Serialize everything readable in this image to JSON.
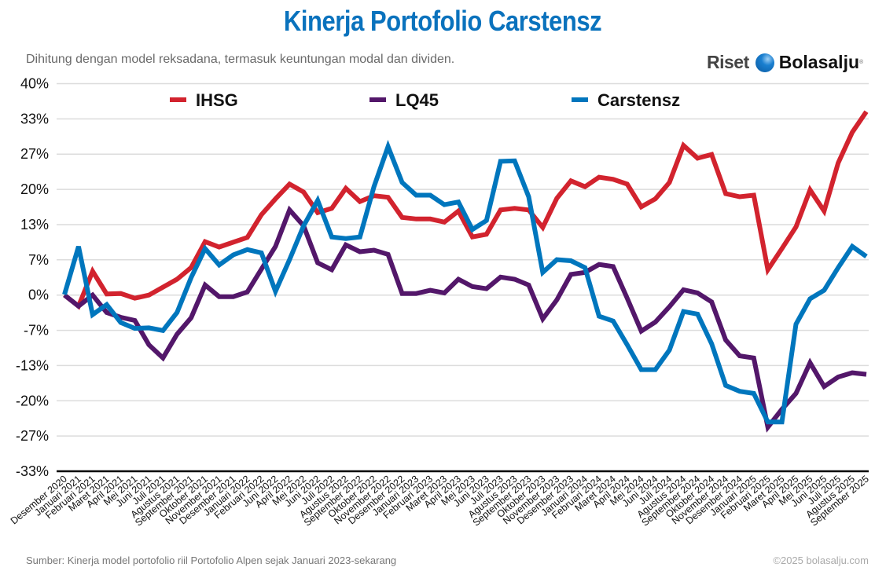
{
  "header": {
    "title": "Kinerja Portofolio Carstensz",
    "subtitle": "Dihitung dengan model reksadana, termasuk keuntungan modal dan dividen.",
    "logo": {
      "left": "Riset",
      "right": "Bolasalju",
      "mark": "®"
    }
  },
  "footer": {
    "source": "Sumber: Kinerja model portofolio riil Portofolio Alpen sejak Januari 2023-sekarang",
    "copyright": "©2025 bolasalju.com"
  },
  "chart_data": {
    "type": "line",
    "title": "Kinerja Portofolio Carstensz",
    "ylim": [
      -33.33,
      40
    ],
    "yticks": [
      40,
      33.33,
      26.67,
      20,
      13.33,
      6.67,
      0,
      -6.67,
      -13.33,
      -20,
      -26.67,
      -33.33
    ],
    "ytick_labels": [
      "40%",
      "33%",
      "27%",
      "20%",
      "13%",
      "7%",
      "0%",
      "-7%",
      "-13%",
      "-20%",
      "-27%",
      "-33%"
    ],
    "grid": true,
    "legend_placement": "top",
    "categories": [
      "Desember 2020",
      "Januari 2021",
      "Februari 2021",
      "Maret 2021",
      "April 2021",
      "Mei 2021",
      "Juni 2021",
      "Juli 2021",
      "Agustus 2021",
      "September 2021",
      "Oktober 2021",
      "November 2021",
      "Desember 2021",
      "Januari 2022",
      "Februari 2022",
      "Juni 2022",
      "April 2022",
      "Mei 2022",
      "Juni 2022",
      "Juli 2022",
      "Agustus 2022",
      "September 2022",
      "Oktober 2022",
      "November 2022",
      "Desember 2022",
      "Januari 2023",
      "Februari 2023",
      "Maret 2023",
      "April 2023",
      "Mei 2023",
      "Juni 2023",
      "Juli 2023",
      "Agustus 2023",
      "September 2023",
      "Oktober 2023",
      "November 2023",
      "Desember 2023",
      "Januari 2024",
      "Februari 2024",
      "Maret 2024",
      "April 2024",
      "Mei 2024",
      "Juni 2024",
      "Juli 2024",
      "Agustus 2024",
      "September 2024",
      "Oktober 2024",
      "November 2024",
      "Desember 2024",
      "Januari 2025",
      "Februari 2025",
      "Maret 2025",
      "April 2025",
      "Mei 2025",
      "Juni 2025",
      "Juli 2025",
      "Agustus 2025",
      "September 2025"
    ],
    "series": [
      {
        "name": "IHSG",
        "color": "#d2232e",
        "values": [
          0,
          -2.1,
          4.5,
          0.2,
          0.3,
          -0.6,
          0,
          1.5,
          3,
          5.2,
          10.1,
          9.1,
          10,
          10.9,
          15.2,
          18.2,
          21,
          19.5,
          15.6,
          16.4,
          20.2,
          17.7,
          18.8,
          18.5,
          14.7,
          14.4,
          14.4,
          13.8,
          15.9,
          11,
          11.5,
          16.1,
          16.4,
          16.1,
          12.8,
          18.3,
          21.6,
          20.5,
          22.3,
          21.9,
          21,
          16.7,
          18.2,
          21.3,
          28.3,
          25.9,
          26.6,
          19.2,
          18.6,
          18.9,
          4.8,
          8.8,
          12.9,
          19.9,
          15.9,
          25,
          30.8,
          34.7
        ]
      },
      {
        "name": "LQ45",
        "color": "#53176a",
        "values": [
          0,
          -2.1,
          0,
          -3.3,
          -4.2,
          -4.8,
          -9.4,
          -11.9,
          -7.4,
          -4.3,
          1.9,
          -0.3,
          -0.3,
          0.6,
          4.9,
          9.2,
          16.1,
          13.1,
          6.1,
          4.8,
          9.5,
          8.2,
          8.5,
          7.7,
          0.3,
          0.3,
          0.9,
          0.4,
          3,
          1.6,
          1.2,
          3.4,
          3,
          1.9,
          -4.5,
          -0.9,
          3.9,
          4.3,
          5.8,
          5.4,
          -0.6,
          -6.8,
          -5.1,
          -2.2,
          1,
          0.4,
          -1.3,
          -8.5,
          -11.5,
          -11.9,
          -25,
          -21.6,
          -18.6,
          -12.8,
          -17.3,
          -15.5,
          -14.7,
          -15
        ]
      },
      {
        "name": "Carstensz",
        "color": "#0076bd",
        "values": [
          0.1,
          9.2,
          -3.7,
          -1.8,
          -5.2,
          -6.3,
          -6.2,
          -6.7,
          -3.3,
          3.3,
          8.8,
          5.7,
          7.6,
          8.6,
          8,
          0.7,
          6.7,
          13.1,
          17.9,
          11,
          10.7,
          11,
          20.5,
          28.1,
          21.3,
          18.9,
          18.9,
          17.1,
          17.6,
          12.4,
          14.1,
          25.3,
          25.4,
          18.6,
          4.3,
          6.7,
          6.5,
          5.2,
          -4,
          -4.9,
          -9.4,
          -14.1,
          -14.1,
          -10.4,
          -3.1,
          -3.6,
          -9.2,
          -17.1,
          -18.2,
          -18.6,
          -24,
          -24,
          -5.5,
          -0.7,
          0.9,
          5.2,
          9.2,
          7.3
        ]
      }
    ]
  }
}
